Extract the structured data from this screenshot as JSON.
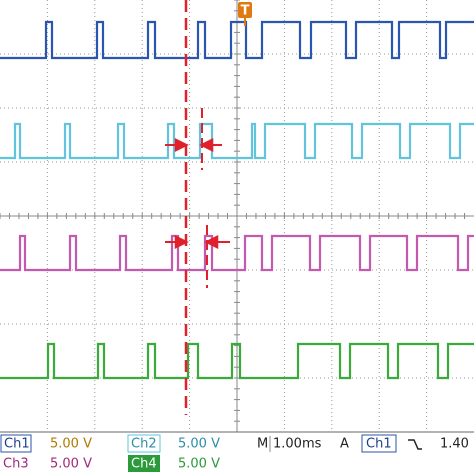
{
  "channels": [
    {
      "label": "Ch1",
      "scale": "5.00 V"
    },
    {
      "label": "Ch2",
      "scale": "5.00 V"
    },
    {
      "label": "Ch3",
      "scale": "5.00 V"
    },
    {
      "label": "Ch4",
      "scale": "5.00 V"
    }
  ],
  "timebase": {
    "prefix": "M",
    "value": "1.00ms"
  },
  "trigger": {
    "mode": "A",
    "source": "Ch1",
    "level": "1.40",
    "marker": "T"
  }
}
